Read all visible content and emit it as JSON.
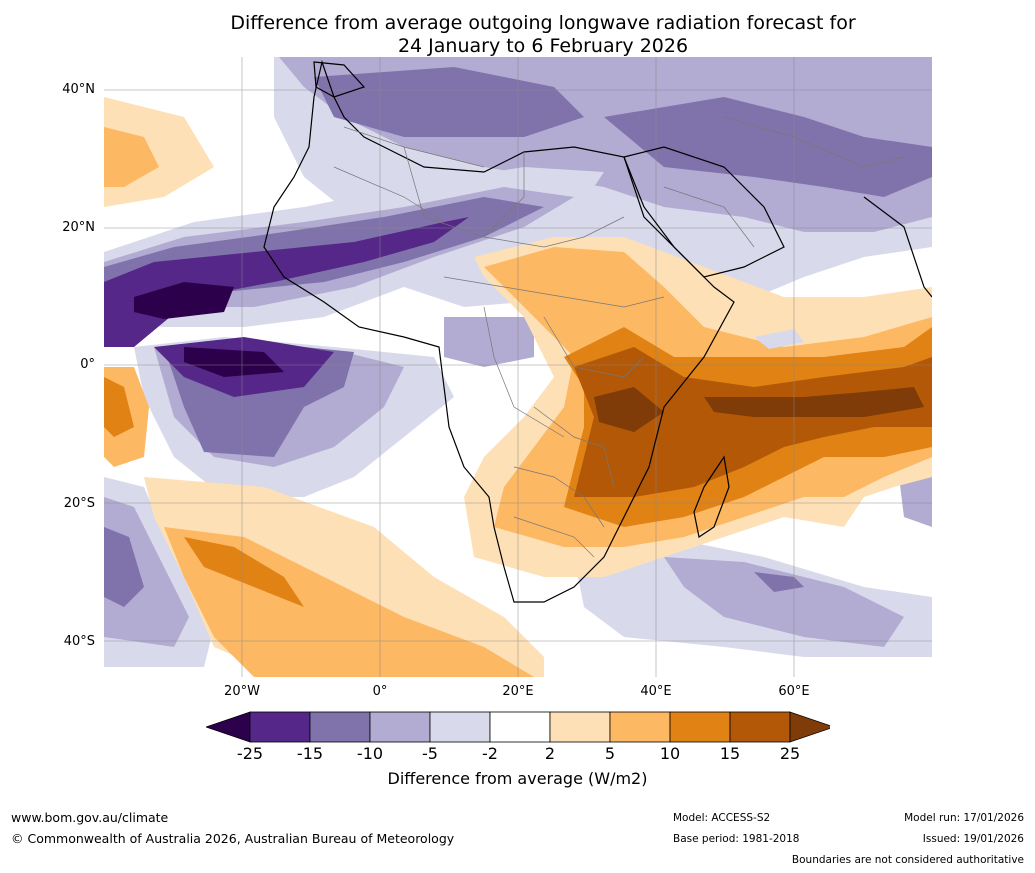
{
  "title": {
    "line1": "Difference from average outgoing longwave radiation forecast for",
    "line2": "24 January to 6 February 2026"
  },
  "map": {
    "lat_labels": [
      "40°N",
      "20°N",
      "0°",
      "20°S",
      "40°S"
    ],
    "lon_labels": [
      "20°W",
      "0°",
      "20°E",
      "40°E",
      "60°E"
    ],
    "lon_range": [
      -40,
      80
    ],
    "lat_range": [
      -45,
      45
    ],
    "palette": {
      "le_-25": "#2d004b",
      "-25_-15": "#542788",
      "-15_-10": "#8073ac",
      "-10_-5": "#b2abd2",
      "-5_-2": "#d8daeb",
      "-2_2": "#ffffff",
      "2_5": "#fee0b6",
      "5_10": "#fdb863",
      "10_15": "#e08214",
      "15_25": "#b35806",
      "ge_25": "#7f3b08"
    }
  },
  "colorbar": {
    "ticks": [
      "-25",
      "-15",
      "-10",
      "-5",
      "-2",
      "2",
      "5",
      "10",
      "15",
      "25"
    ],
    "colors": [
      "#2d004b",
      "#542788",
      "#8073ac",
      "#b2abd2",
      "#d8daeb",
      "#ffffff",
      "#fee0b6",
      "#fdb863",
      "#e08214",
      "#b35806",
      "#7f3b08"
    ],
    "label": "Difference from average (W/m2)"
  },
  "footer": {
    "website": "www.bom.gov.au/climate",
    "copyright": "© Commonwealth of Australia 2026, Australian Bureau of Meteorology",
    "model": "Model: ACCESS-S2",
    "base_period": "Base period: 1981-2018",
    "model_run": "Model run: 17/01/2026",
    "issued": "Issued: 19/01/2026",
    "boundaries": "Boundaries are not considered authoritative"
  }
}
